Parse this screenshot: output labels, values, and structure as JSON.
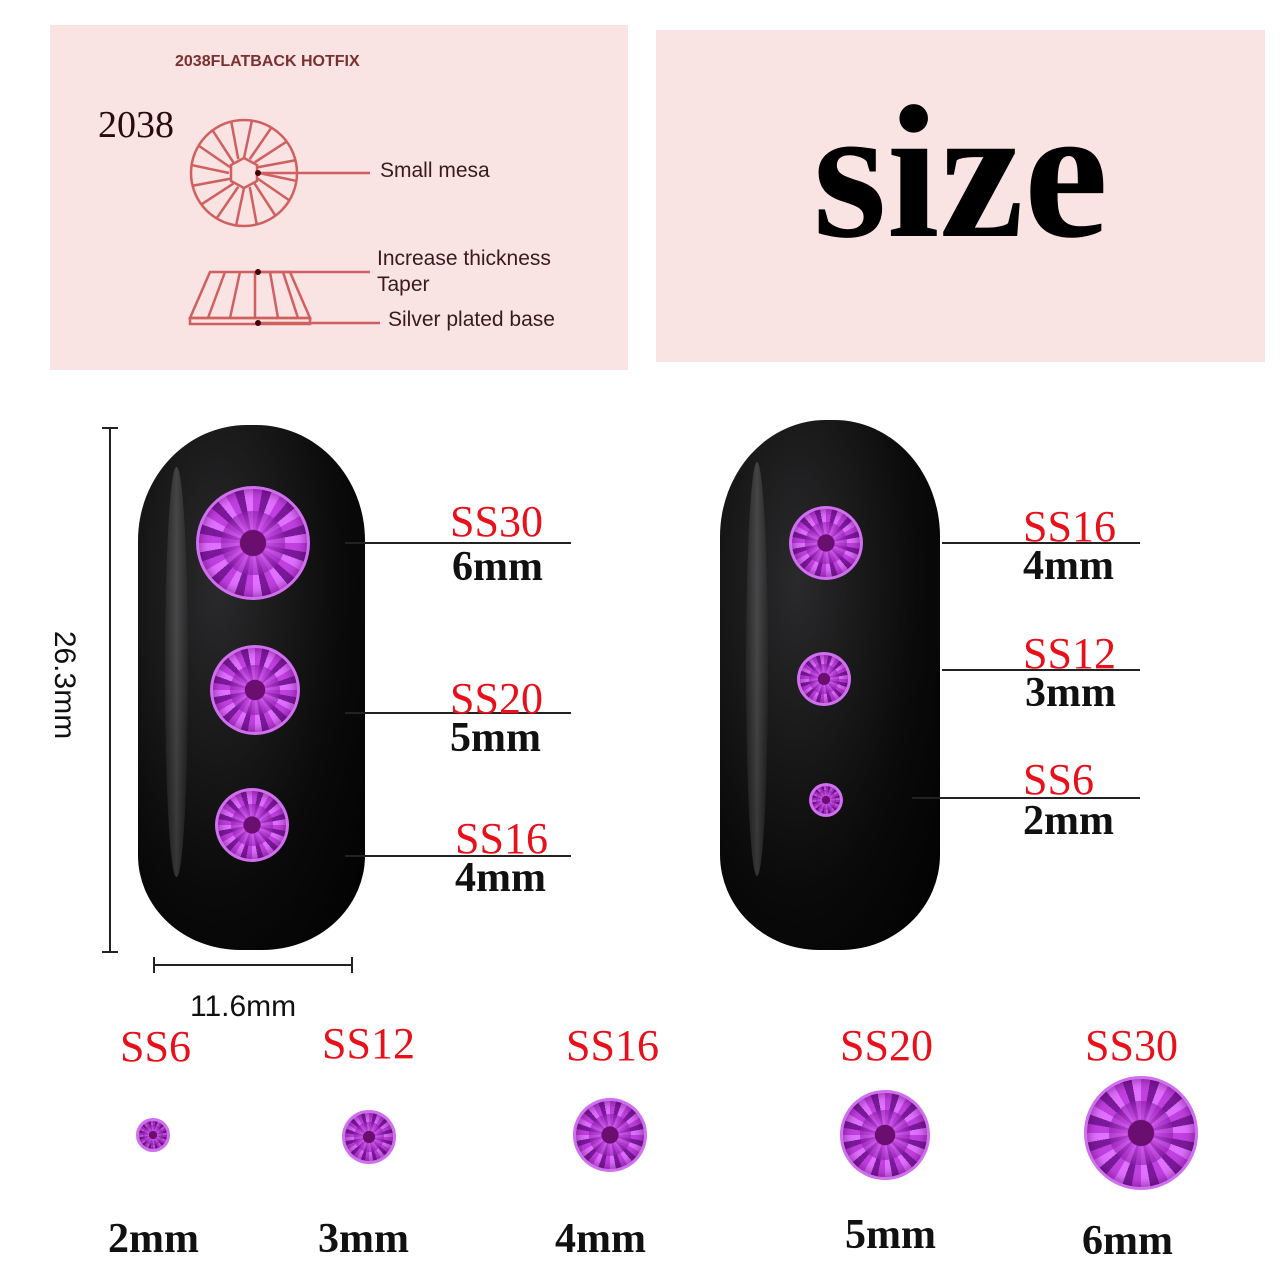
{
  "diagram_panel": {
    "header": "2038FLATBACK HOTFIX",
    "model": "2038",
    "labels": [
      "Small mesa",
      "Increase thickness",
      "Taper",
      "Silver plated base"
    ]
  },
  "title": "size",
  "dimensions": {
    "height": "26.3mm",
    "width": "11.6mm"
  },
  "left_nail": [
    {
      "ss": "SS30",
      "mm": "6mm"
    },
    {
      "ss": "SS20",
      "mm": "5mm"
    },
    {
      "ss": "SS16",
      "mm": "4mm"
    }
  ],
  "right_nail": [
    {
      "ss": "SS16",
      "mm": "4mm"
    },
    {
      "ss": "SS12",
      "mm": "3mm"
    },
    {
      "ss": "SS6",
      "mm": "2mm"
    }
  ],
  "bottom_row": [
    {
      "ss": "SS6",
      "mm": "2mm"
    },
    {
      "ss": "SS12",
      "mm": "3mm"
    },
    {
      "ss": "SS16",
      "mm": "4mm"
    },
    {
      "ss": "SS20",
      "mm": "5mm"
    },
    {
      "ss": "SS30",
      "mm": "6mm"
    }
  ],
  "colors": {
    "panel": "#f9e3e3",
    "label_red": "#e8101a",
    "gem": "#a030c0",
    "diagram_line": "#d06060"
  }
}
